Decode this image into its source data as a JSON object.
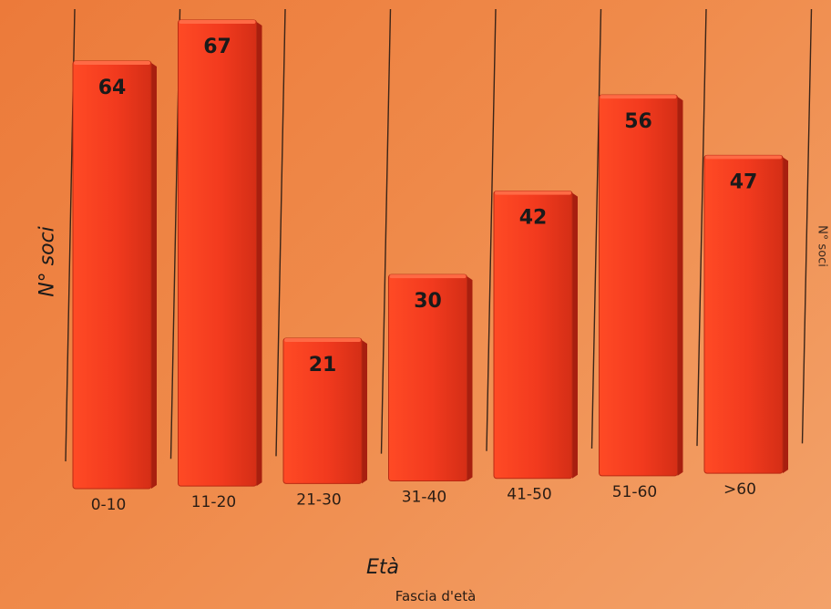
{
  "chart_data": {
    "type": "bar",
    "title": "",
    "xlabel": "Età",
    "x_sublabel": "Fascia d'età",
    "ylabel": "N° soci",
    "ylabel_ghost": "N° soci",
    "categories": [
      "0-10",
      "11-20",
      "21-30",
      "31-40",
      "41-50",
      "51-60",
      ">60"
    ],
    "values": [
      64,
      67,
      21,
      30,
      42,
      56,
      47
    ],
    "ylim": [
      0,
      67
    ],
    "data_labels": true,
    "bar_color": "#f23a1e",
    "bar_side_color": "#a81f0f",
    "bar_top_color": "#ff6a45"
  }
}
